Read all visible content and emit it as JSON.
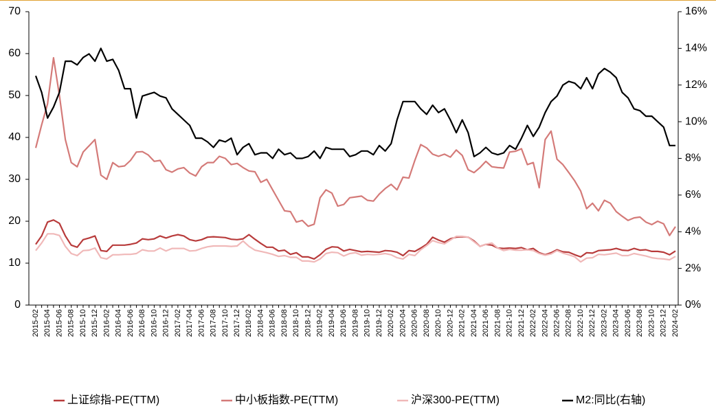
{
  "chart_data": {
    "type": "line",
    "categories": [
      "2015-02",
      null,
      "2015-04",
      null,
      "2015-06",
      null,
      "2015-08",
      null,
      "2015-10",
      null,
      "2015-12",
      null,
      "2016-02",
      null,
      "2016-04",
      null,
      "2016-06",
      null,
      "2016-08",
      null,
      "2016-10",
      null,
      "2016-12",
      null,
      "2017-02",
      null,
      "2017-04",
      null,
      "2017-06",
      null,
      "2017-08",
      null,
      "2017-10",
      null,
      "2017-12",
      null,
      "2018-02",
      null,
      "2018-04",
      null,
      "2018-06",
      null,
      "2018-08",
      null,
      "2018-10",
      null,
      "2018-12",
      null,
      "2019-02",
      null,
      "2019-04",
      null,
      "2019-06",
      null,
      "2019-08",
      null,
      "2019-10",
      null,
      "2019-12",
      null,
      "2020-02",
      null,
      "2020-04",
      null,
      "2020-06",
      null,
      "2020-08",
      null,
      "2020-10",
      null,
      "2020-12",
      null,
      "2021-02",
      null,
      "2021-04",
      null,
      "2021-06",
      null,
      "2021-08",
      null,
      "2021-10",
      null,
      "2021-12",
      null,
      "2022-02",
      null,
      "2022-04",
      null,
      "2022-06",
      null,
      "2022-08",
      null,
      "2022-10",
      null,
      "2022-12",
      null,
      "2023-02",
      null,
      "2023-04",
      null,
      "2023-06",
      null,
      "2023-08",
      null,
      "2023-10",
      null,
      "2023-12",
      null,
      "2024-02"
    ],
    "series": [
      {
        "name": "上证综指-PE(TTM)",
        "color": "#b83b3b",
        "values": [
          14.5,
          16.5,
          19.8,
          20.3,
          19.5,
          16.5,
          14.3,
          13.8,
          15.6,
          16,
          16.5,
          13,
          12.8,
          14.3,
          14.3,
          14.3,
          14.5,
          14.8,
          15.8,
          15.6,
          15.8,
          16.5,
          16,
          16.5,
          16.8,
          16.5,
          15.6,
          15.3,
          15.6,
          16.2,
          16.3,
          16.2,
          16.1,
          15.7,
          15.6,
          15.8,
          16.8,
          15.7,
          14.7,
          13.8,
          13.8,
          12.9,
          13.1,
          12.1,
          12.5,
          11.5,
          11.5,
          11,
          12,
          13.3,
          13.9,
          13.8,
          12.9,
          13.3,
          13,
          12.7,
          12.8,
          12.7,
          12.6,
          13,
          12.9,
          12.6,
          11.8,
          13,
          12.8,
          13.6,
          14.5,
          16.2,
          15.5,
          15,
          15.8,
          16.2,
          16.3,
          16.2,
          15.3,
          14,
          14.5,
          14.3,
          13.6,
          13.5,
          13.6,
          13.5,
          13.7,
          13.2,
          13.5,
          12.5,
          12,
          12.5,
          13.2,
          12.7,
          12.6,
          12,
          11.5,
          12.5,
          12.4,
          13,
          13.1,
          13.2,
          13.5,
          13.1,
          13,
          13.5,
          13.1,
          13.2,
          12.8,
          12.8,
          12.6,
          12,
          12.9
        ]
      },
      {
        "name": "中小板指数-PE(TTM)",
        "color": "#d47a78",
        "values": [
          37.5,
          43,
          48,
          59,
          50,
          39.5,
          34,
          33,
          36.5,
          38,
          39.5,
          31,
          30,
          34,
          33,
          33.2,
          34.5,
          36.5,
          36.6,
          35.8,
          34.3,
          34.5,
          32.3,
          31.7,
          32.5,
          32.8,
          31.5,
          30.8,
          33,
          34,
          34,
          35.5,
          35,
          33.5,
          33.8,
          32.8,
          32,
          31.8,
          29.3,
          30,
          27.5,
          25,
          22.5,
          22.3,
          19.8,
          20.2,
          18.8,
          19.3,
          25.6,
          27.5,
          26.7,
          23.6,
          24,
          25.6,
          25.8,
          26,
          25,
          24.8,
          26.5,
          27.8,
          28.8,
          27.5,
          30.5,
          30.3,
          34.5,
          38.3,
          37.5,
          36,
          35.5,
          36,
          35.3,
          37,
          35.7,
          32.3,
          31.6,
          32.8,
          34.3,
          33,
          32.8,
          32.7,
          36.5,
          36.7,
          37.3,
          33.5,
          34,
          28,
          39.5,
          41.5,
          34.8,
          33.5,
          31.6,
          29.6,
          27.2,
          23,
          24.3,
          22.5,
          25,
          24.3,
          22.3,
          21.2,
          20.2,
          20.8,
          21,
          19.8,
          19.2,
          20,
          19.4,
          16.6,
          18.7
        ]
      },
      {
        "name": "沪深300-PE(TTM)",
        "color": "#f0b8b8",
        "values": [
          13,
          14.8,
          17,
          17,
          16.6,
          14,
          12.3,
          11.8,
          13,
          13.1,
          13.6,
          11.3,
          11,
          12,
          12,
          12.1,
          12.1,
          12.3,
          13.2,
          12.9,
          12.9,
          13.6,
          12.9,
          13.5,
          13.5,
          13.5,
          12.9,
          13,
          13.5,
          13.9,
          14.1,
          14.1,
          14.1,
          14,
          14.1,
          15.3,
          14,
          13.1,
          12.8,
          12.5,
          12.1,
          11.6,
          11.8,
          11.4,
          11.4,
          10.5,
          10.5,
          10.3,
          11,
          12.3,
          12.6,
          12.5,
          11.7,
          12.3,
          12.5,
          11.9,
          12.1,
          12,
          12.1,
          12.3,
          12,
          11.3,
          11,
          12.1,
          11.8,
          13.2,
          14.2,
          15.4,
          14.9,
          14.6,
          15.5,
          16.4,
          16.4,
          16.2,
          15.1,
          14,
          14.5,
          14.8,
          13.6,
          13,
          13.3,
          13.1,
          13.1,
          13.2,
          13,
          12.3,
          11.9,
          12.2,
          13,
          12.4,
          12,
          11.5,
          10.3,
          11.2,
          11.3,
          12.1,
          12,
          12.2,
          12.4,
          11.8,
          11.8,
          12.3,
          12,
          11.7,
          11.3,
          11.1,
          11,
          10.8,
          11.6
        ]
      },
      {
        "name": "M2:同比(右轴)",
        "color": "#000000",
        "axis": "y2",
        "values": [
          12.5,
          11.6,
          10.2,
          10.8,
          11.6,
          13.3,
          13.3,
          13.1,
          13.5,
          13.7,
          13.3,
          14.0,
          13.3,
          13.4,
          12.8,
          11.8,
          11.8,
          10.2,
          11.4,
          11.5,
          11.6,
          11.4,
          11.3,
          10.7,
          10.4,
          10.1,
          9.8,
          9.1,
          9.1,
          8.9,
          8.6,
          9.0,
          8.9,
          9.1,
          8.2,
          8.6,
          8.8,
          8.2,
          8.3,
          8.3,
          8.0,
          8.5,
          8.2,
          8.3,
          8.0,
          8.0,
          8.1,
          8.4,
          8.0,
          8.6,
          8.5,
          8.5,
          8.5,
          8.1,
          8.2,
          8.4,
          8.4,
          8.2,
          8.7,
          8.4,
          8.8,
          10.1,
          11.1,
          11.1,
          11.1,
          10.7,
          10.4,
          10.9,
          10.5,
          10.7,
          10.1,
          9.4,
          10.1,
          9.4,
          8.1,
          8.3,
          8.6,
          8.3,
          8.2,
          8.3,
          8.7,
          8.5,
          9.1,
          9.8,
          9.2,
          9.7,
          10.5,
          11.1,
          11.4,
          12.0,
          12.2,
          12.1,
          11.8,
          12.4,
          11.8,
          12.6,
          12.9,
          12.7,
          12.4,
          11.6,
          11.3,
          10.7,
          10.6,
          10.3,
          10.3,
          10.0,
          9.7,
          8.7,
          8.7
        ]
      }
    ],
    "ylim": [
      0,
      70
    ],
    "yticks": [
      0,
      10,
      20,
      30,
      40,
      50,
      60,
      70
    ],
    "y2lim": [
      0,
      16
    ],
    "y2ticks": [
      {
        "value": 0,
        "label": "0%"
      },
      {
        "value": 2,
        "label": "2%"
      },
      {
        "value": 4,
        "label": "4%"
      },
      {
        "value": 6,
        "label": "6%"
      },
      {
        "value": 8,
        "label": "8%"
      },
      {
        "value": 10,
        "label": "10%"
      },
      {
        "value": 12,
        "label": "12%"
      },
      {
        "value": 14,
        "label": "14%"
      },
      {
        "value": 16,
        "label": "16%"
      }
    ],
    "grid": false,
    "legend": "bottom"
  }
}
